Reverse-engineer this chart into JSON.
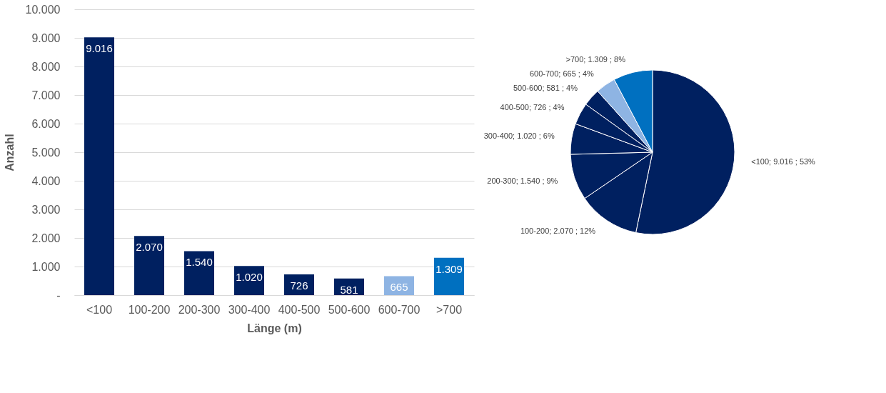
{
  "chart_data": [
    {
      "type": "bar",
      "xlabel": "Länge (m)",
      "ylabel": "Anzahl",
      "categories": [
        "<100",
        "100-200",
        "200-300",
        "300-400",
        "400-500",
        "500-600",
        "600-700",
        ">700"
      ],
      "values": [
        9016,
        2070,
        1540,
        1020,
        726,
        581,
        665,
        1309
      ],
      "colors": [
        "#002060",
        "#002060",
        "#002060",
        "#002060",
        "#002060",
        "#002060",
        "#8eb4e3",
        "#0070c0"
      ],
      "value_labels": [
        "9.016",
        "2.070",
        "1.540",
        "1.020",
        "726",
        "581",
        "665",
        "1.309"
      ],
      "ylim": [
        0,
        10000
      ],
      "yticks": [
        {
          "value": 0,
          "label": "-"
        },
        {
          "value": 1000,
          "label": "1.000"
        },
        {
          "value": 2000,
          "label": "2.000"
        },
        {
          "value": 3000,
          "label": "3.000"
        },
        {
          "value": 4000,
          "label": "4.000"
        },
        {
          "value": 5000,
          "label": "5.000"
        },
        {
          "value": 6000,
          "label": "6.000"
        },
        {
          "value": 7000,
          "label": "7.000"
        },
        {
          "value": 8000,
          "label": "8.000"
        },
        {
          "value": 9000,
          "label": "9.000"
        },
        {
          "value": 10000,
          "label": "10.000"
        }
      ],
      "grid": "y"
    },
    {
      "type": "pie",
      "categories": [
        "<100",
        "100-200",
        "200-300",
        "300-400",
        "400-500",
        "500-600",
        "600-700",
        ">700"
      ],
      "values": [
        9016,
        2070,
        1540,
        1020,
        726,
        581,
        665,
        1309
      ],
      "colors": [
        "#002060",
        "#002060",
        "#002060",
        "#002060",
        "#002060",
        "#002060",
        "#8eb4e3",
        "#0070c0"
      ],
      "value_labels": [
        "9.016  ; 53%",
        "2.070  ; 12%",
        "1.540  ; 9%",
        "1.020  ; 6%",
        "726  ; 4%",
        "581  ; 4%",
        "665  ; 4%",
        "1.309  ; 8%"
      ]
    }
  ]
}
